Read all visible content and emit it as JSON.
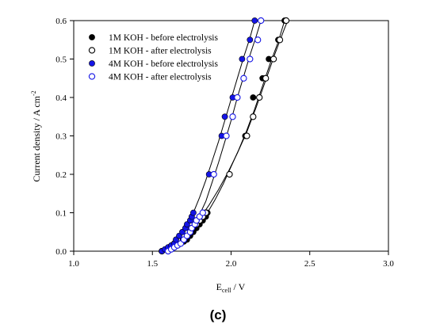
{
  "chart_data": {
    "type": "scatter",
    "xlabel_main": "E",
    "xlabel_sub": "cell",
    "xlabel_rest": " / V",
    "ylabel_main": "Current density / A cm",
    "ylabel_sup": "-2",
    "xlim": [
      1.0,
      3.0
    ],
    "ylim": [
      0.0,
      0.6
    ],
    "xticks": [
      "1.0",
      "1.5",
      "2.0",
      "2.5",
      "3.0"
    ],
    "yticks": [
      "0.0",
      "0.1",
      "0.2",
      "0.3",
      "0.4",
      "0.5",
      "0.6"
    ],
    "grid": false,
    "legend_position": "top-left",
    "series": [
      {
        "name": "1M KOH - before electrolysis",
        "color": "#000000",
        "marker": "filled-circle",
        "points": [
          [
            1.6,
            0.0
          ],
          [
            1.62,
            0.005
          ],
          [
            1.64,
            0.01
          ],
          [
            1.66,
            0.015
          ],
          [
            1.68,
            0.02
          ],
          [
            1.7,
            0.025
          ],
          [
            1.72,
            0.03
          ],
          [
            1.74,
            0.04
          ],
          [
            1.76,
            0.05
          ],
          [
            1.78,
            0.06
          ],
          [
            1.8,
            0.07
          ],
          [
            1.82,
            0.08
          ],
          [
            1.84,
            0.09
          ],
          [
            1.85,
            0.1
          ],
          [
            2.09,
            0.3
          ],
          [
            2.14,
            0.4
          ],
          [
            2.2,
            0.45
          ],
          [
            2.24,
            0.5
          ],
          [
            2.3,
            0.55
          ],
          [
            2.34,
            0.6
          ]
        ],
        "fit": [
          [
            1.6,
            0.0
          ],
          [
            1.65,
            0.012
          ],
          [
            1.7,
            0.025
          ],
          [
            1.75,
            0.045
          ],
          [
            1.8,
            0.07
          ],
          [
            1.85,
            0.1
          ],
          [
            1.9,
            0.135
          ],
          [
            1.95,
            0.175
          ],
          [
            2.0,
            0.22
          ],
          [
            2.05,
            0.265
          ],
          [
            2.1,
            0.315
          ],
          [
            2.15,
            0.37
          ],
          [
            2.2,
            0.43
          ],
          [
            2.25,
            0.49
          ],
          [
            2.3,
            0.545
          ],
          [
            2.34,
            0.6
          ]
        ]
      },
      {
        "name": "1M KOH - after electrolysis",
        "color": "#000000",
        "marker": "open-circle",
        "points": [
          [
            1.56,
            0.0
          ],
          [
            1.59,
            0.005
          ],
          [
            1.61,
            0.01
          ],
          [
            1.64,
            0.02
          ],
          [
            1.66,
            0.03
          ],
          [
            1.69,
            0.04
          ],
          [
            1.72,
            0.05
          ],
          [
            1.75,
            0.06
          ],
          [
            1.78,
            0.07
          ],
          [
            1.8,
            0.08
          ],
          [
            1.82,
            0.09
          ],
          [
            1.84,
            0.1
          ],
          [
            1.99,
            0.2
          ],
          [
            2.1,
            0.3
          ],
          [
            2.14,
            0.35
          ],
          [
            2.18,
            0.4
          ],
          [
            2.22,
            0.45
          ],
          [
            2.27,
            0.5
          ],
          [
            2.31,
            0.55
          ],
          [
            2.35,
            0.6
          ]
        ],
        "fit": [
          [
            1.56,
            0.0
          ],
          [
            1.62,
            0.012
          ],
          [
            1.68,
            0.035
          ],
          [
            1.74,
            0.06
          ],
          [
            1.8,
            0.085
          ],
          [
            1.86,
            0.12
          ],
          [
            1.92,
            0.16
          ],
          [
            1.98,
            0.205
          ],
          [
            2.04,
            0.255
          ],
          [
            2.1,
            0.31
          ],
          [
            2.16,
            0.375
          ],
          [
            2.22,
            0.445
          ],
          [
            2.28,
            0.515
          ],
          [
            2.34,
            0.58
          ],
          [
            2.36,
            0.6
          ]
        ]
      },
      {
        "name": "4M KOH - before electrolysis",
        "color": "#1414e6",
        "marker": "filled-circle",
        "points": [
          [
            1.56,
            0.0
          ],
          [
            1.58,
            0.005
          ],
          [
            1.6,
            0.01
          ],
          [
            1.62,
            0.015
          ],
          [
            1.64,
            0.02
          ],
          [
            1.65,
            0.03
          ],
          [
            1.67,
            0.04
          ],
          [
            1.69,
            0.05
          ],
          [
            1.71,
            0.06
          ],
          [
            1.72,
            0.07
          ],
          [
            1.74,
            0.08
          ],
          [
            1.75,
            0.09
          ],
          [
            1.76,
            0.1
          ],
          [
            1.86,
            0.2
          ],
          [
            1.94,
            0.3
          ],
          [
            1.96,
            0.35
          ],
          [
            2.01,
            0.4
          ],
          [
            2.07,
            0.5
          ],
          [
            2.12,
            0.55
          ],
          [
            2.15,
            0.6
          ]
        ],
        "fit": [
          [
            1.56,
            0.0
          ],
          [
            1.6,
            0.01
          ],
          [
            1.64,
            0.022
          ],
          [
            1.68,
            0.045
          ],
          [
            1.72,
            0.07
          ],
          [
            1.76,
            0.1
          ],
          [
            1.8,
            0.14
          ],
          [
            1.84,
            0.185
          ],
          [
            1.88,
            0.235
          ],
          [
            1.92,
            0.285
          ],
          [
            1.96,
            0.34
          ],
          [
            2.0,
            0.395
          ],
          [
            2.04,
            0.45
          ],
          [
            2.08,
            0.505
          ],
          [
            2.12,
            0.555
          ],
          [
            2.15,
            0.6
          ]
        ]
      },
      {
        "name": "4M KOH - after electrolysis",
        "color": "#1414e6",
        "marker": "open-circle",
        "points": [
          [
            1.6,
            0.0
          ],
          [
            1.62,
            0.005
          ],
          [
            1.64,
            0.01
          ],
          [
            1.66,
            0.015
          ],
          [
            1.68,
            0.02
          ],
          [
            1.7,
            0.03
          ],
          [
            1.72,
            0.04
          ],
          [
            1.74,
            0.05
          ],
          [
            1.75,
            0.06
          ],
          [
            1.77,
            0.07
          ],
          [
            1.78,
            0.08
          ],
          [
            1.8,
            0.09
          ],
          [
            1.82,
            0.1
          ],
          [
            1.89,
            0.2
          ],
          [
            1.97,
            0.3
          ],
          [
            2.01,
            0.35
          ],
          [
            2.04,
            0.4
          ],
          [
            2.08,
            0.45
          ],
          [
            2.12,
            0.5
          ],
          [
            2.17,
            0.55
          ],
          [
            2.19,
            0.6
          ]
        ],
        "fit": [
          [
            1.6,
            0.0
          ],
          [
            1.64,
            0.01
          ],
          [
            1.68,
            0.02
          ],
          [
            1.72,
            0.04
          ],
          [
            1.76,
            0.065
          ],
          [
            1.8,
            0.095
          ],
          [
            1.84,
            0.13
          ],
          [
            1.88,
            0.18
          ],
          [
            1.92,
            0.23
          ],
          [
            1.96,
            0.285
          ],
          [
            2.0,
            0.34
          ],
          [
            2.04,
            0.4
          ],
          [
            2.08,
            0.455
          ],
          [
            2.12,
            0.51
          ],
          [
            2.16,
            0.56
          ],
          [
            2.19,
            0.6
          ]
        ]
      }
    ]
  },
  "panel_label": "(c)"
}
